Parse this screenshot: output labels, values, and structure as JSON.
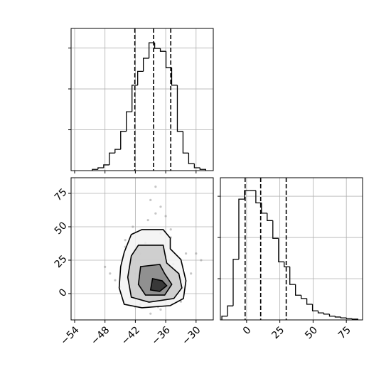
{
  "chart_data": [
    {
      "type": "histogram",
      "bins": [
        -50.5,
        -49.38,
        -48.26,
        -47.14,
        -46.02,
        -44.9,
        -43.78,
        -42.66,
        -41.54,
        -40.42,
        -39.3,
        -38.18,
        -37.06,
        -35.94,
        -34.82,
        -33.7,
        -32.58,
        -31.46,
        -30.34,
        -29.22,
        -28.1
      ],
      "counts": [
        3,
        7,
        14,
        43,
        52,
        96,
        144,
        209,
        243,
        275,
        313,
        299,
        292,
        252,
        209,
        96,
        43,
        17,
        7,
        3
      ],
      "quantiles": [
        -42.1,
        -38.4,
        -35.0
      ],
      "color": "#000000",
      "xlim": [
        -54.7,
        -26.6
      ],
      "xticks": [
        -54,
        -48,
        -42,
        -36,
        -30
      ],
      "ylim": [
        0,
        348
      ],
      "yticks": [
        100,
        200,
        300
      ],
      "grid": true
    },
    {
      "type": "scatter",
      "x": [
        -38,
        -40,
        -36,
        -35,
        -41,
        -39,
        -37,
        -42,
        -34,
        -43,
        -38.5,
        -36.5,
        -33,
        -44,
        -39.5,
        -37.5,
        -40.5,
        -35.5,
        -31,
        -46,
        -38,
        -41,
        -36,
        -42.5,
        -34.5,
        -39,
        -37,
        -45,
        -32,
        -40,
        -38,
        -36,
        -43,
        -35,
        -48,
        -29,
        -39,
        -37,
        -41.5,
        -34,
        -38,
        -40,
        -36,
        -44,
        -33,
        -47,
        -30,
        -42,
        -35,
        -39
      ],
      "y": [
        5,
        12,
        -2,
        20,
        30,
        8,
        45,
        15,
        0,
        25,
        -5,
        35,
        10,
        40,
        55,
        -10,
        3,
        18,
        15,
        10,
        60,
        -8,
        28,
        50,
        22,
        70,
        -12,
        5,
        30,
        38,
        2,
        14,
        -3,
        48,
        20,
        25,
        -15,
        65,
        33,
        8,
        80,
        12,
        58,
        35,
        -6,
        15,
        30,
        -10,
        42,
        18
      ],
      "point_color": "#808080",
      "contours": [
        {
          "color": "#f2f2f2",
          "x": [
            -44.2,
            -42.8,
            -40.7,
            -36.5,
            -35.1,
            -35.1,
            -33.0,
            -32.0,
            -32.5,
            -35.1,
            -40.7,
            -44.2,
            -45.2,
            -44.9
          ],
          "y": [
            30.9,
            44.2,
            47.9,
            47.9,
            41.5,
            33.5,
            25.5,
            9.6,
            -3.7,
            -9.0,
            -10.6,
            -8.0,
            4.3,
            20.2
          ]
        },
        {
          "color": "#c8c8c8",
          "x": [
            -42.8,
            -41.4,
            -36.5,
            -35.8,
            -33.4,
            -32.8,
            -34.4,
            -39.3,
            -42.8,
            -43.5
          ],
          "y": [
            28.2,
            36.2,
            36.2,
            22.9,
            14.9,
            4.3,
            -3.7,
            -6.4,
            -2.7,
            12.2
          ]
        },
        {
          "color": "#858585",
          "x": [
            -40.96,
            -37.17,
            -36.2,
            -34.8,
            -36.2,
            -40.0,
            -41.4
          ],
          "y": [
            20.2,
            21.8,
            14.9,
            6.9,
            -1.1,
            -1.1,
            6.9
          ]
        },
        {
          "color": "#2a2a2a",
          "x": [
            -38.6,
            -36.7,
            -35.8,
            -37.2,
            -39.0
          ],
          "y": [
            11.2,
            9.6,
            5.9,
            1.6,
            2.7
          ]
        }
      ],
      "xlim": [
        -54.7,
        -26.6
      ],
      "xticks": [
        {
          "value": -54,
          "label": "−54"
        },
        {
          "value": -48,
          "label": "−48"
        },
        {
          "value": -42,
          "label": "−42"
        },
        {
          "value": -36,
          "label": "−36"
        },
        {
          "value": -30,
          "label": "−30"
        }
      ],
      "ylim": [
        -19.7,
        86.7
      ],
      "yticks": [
        0,
        25,
        50,
        75
      ],
      "grid": true
    },
    {
      "type": "histogram",
      "bins": [
        -18.6,
        -14.34,
        -10.08,
        -5.82,
        -1.56,
        2.7,
        6.96,
        11.22,
        15.48,
        19.74,
        24.0,
        28.26,
        32.52,
        36.78,
        41.04,
        45.3,
        49.56,
        53.82,
        58.08,
        62.34,
        66.6,
        70.86,
        75.12,
        79.38,
        83.64
      ],
      "counts": [
        9,
        34,
        147,
        293,
        314,
        314,
        284,
        259,
        241,
        198,
        141,
        129,
        86,
        60,
        52,
        38,
        22,
        17,
        14,
        9,
        7,
        5,
        3,
        2
      ],
      "quantiles": [
        -1.1,
        10.6,
        29.8
      ],
      "color": "#000000",
      "xlim": [
        -19.7,
        87.2
      ],
      "xticks": [
        0,
        25,
        50,
        75
      ],
      "ylim": [
        0,
        345
      ],
      "yticks": [
        100,
        200,
        300
      ],
      "grid": true
    }
  ]
}
